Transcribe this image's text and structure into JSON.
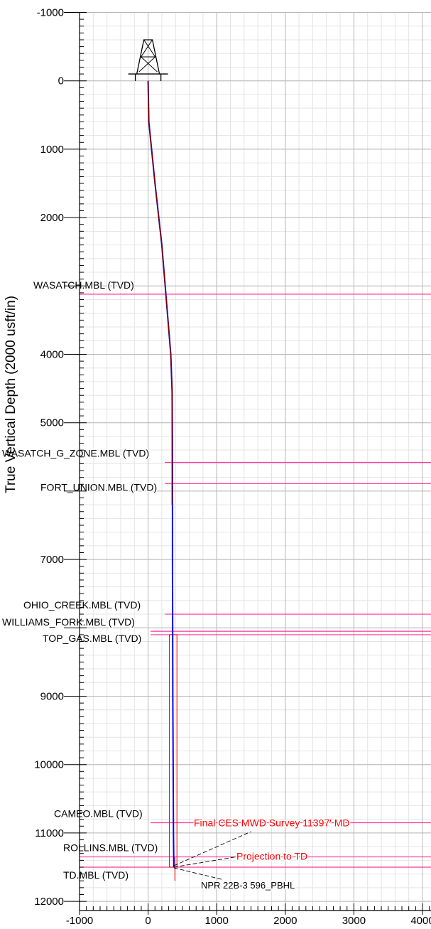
{
  "chart_data": {
    "type": "line",
    "title": "",
    "ylabel": "True Vertical Depth (2000 usft/in)",
    "xlabel": "",
    "xlim": [
      -1000,
      4000
    ],
    "ylim": [
      -1000,
      12000
    ],
    "y_inverted": true,
    "x_ticks": [
      "-1000",
      "0",
      "1000",
      "2000",
      "3000",
      "4000"
    ],
    "y_ticks": [
      "-1000",
      "0",
      "1000",
      "2000",
      "4000",
      "5000",
      "7000",
      "9000",
      "10000",
      "11000",
      "12000"
    ],
    "y_tick_values": [
      -1000,
      0,
      1000,
      2000,
      4000,
      5000,
      7000,
      9000,
      10000,
      11000,
      12000
    ],
    "grid": true,
    "series": [
      {
        "color": "#0000ff",
        "x": [
          0,
          10,
          100,
          200,
          290,
          330,
          350,
          355,
          355,
          360,
          370,
          375
        ],
        "y": [
          0,
          600,
          1500,
          2400,
          3500,
          4000,
          4550,
          5500,
          7000,
          9000,
          11000,
          11500
        ]
      },
      {
        "color": "#800000",
        "x": [
          0,
          10,
          100,
          200,
          290,
          330,
          350,
          350
        ],
        "y": [
          0,
          600,
          1500,
          2400,
          3500,
          4000,
          4500,
          6200
        ]
      }
    ],
    "formations": [
      {
        "name": "WASATCH.MBL (TVD)",
        "tvd": 3120
      },
      {
        "name": "WASATCH_G_ZONE.MBL (TVD)",
        "tvd": 5580
      },
      {
        "name": "FORT_UNION.MBL (TVD)",
        "tvd": 5890
      },
      {
        "name": "OHIO_CREEK.MBL (TVD)",
        "tvd": 7800
      },
      {
        "name": "WILLIAMS_FORK.MBL (TVD)",
        "tvd": 8050
      },
      {
        "name": "TOP_GAS.MBL (TVD)",
        "tvd": 8100
      },
      {
        "name": "CAMEO.MBL (TVD)",
        "tvd": 10850
      },
      {
        "name": "ROLLINS.MBL (TVD)",
        "tvd": 11350
      },
      {
        "name": "TD.MBL (TVD)",
        "tvd": 11500
      }
    ],
    "annotations": [
      {
        "text": "Final CES MWD Survey 11397' MD",
        "color": "#ff0000"
      },
      {
        "text": "Projection to TD",
        "color": "#ff0000"
      },
      {
        "text": "NPR 22B-3 596_PBHL",
        "color": "#000000"
      }
    ],
    "colors": {
      "formation_line": "#ff3399",
      "grid_major": "#b8b8b8",
      "grid_minor": "#e4e4e4",
      "target_box": "#ff0000"
    }
  }
}
